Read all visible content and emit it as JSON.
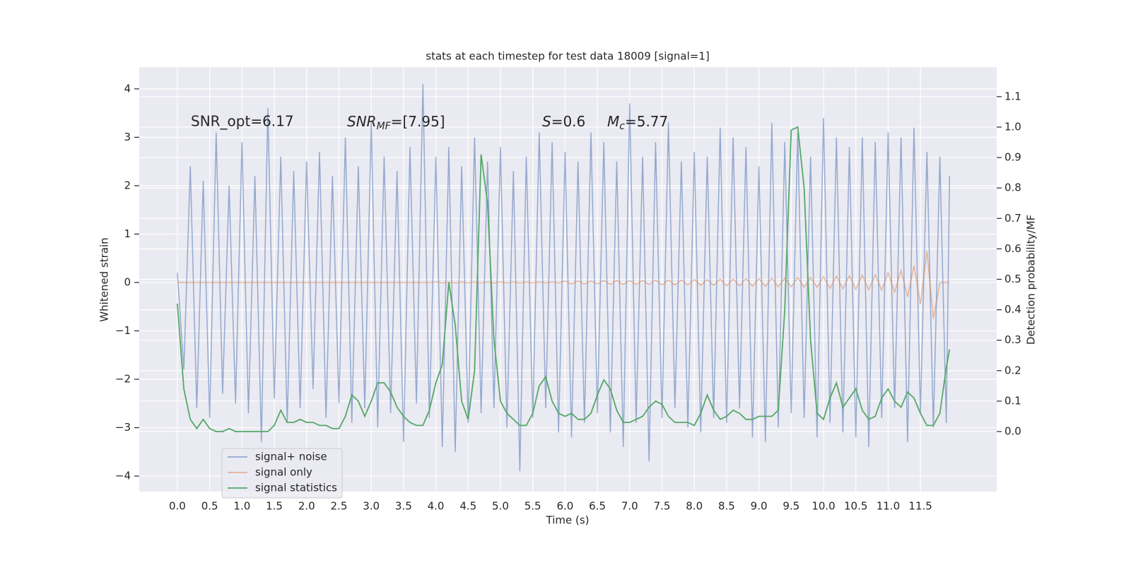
{
  "chart_data": {
    "type": "line",
    "title": "stats at each timestep for test data 18009 [signal=1]",
    "xlabel": "Time (s)",
    "ylabel": "Whitened strain",
    "y2label": "Detection probability/MF",
    "xlim": [
      -0.59,
      12.68
    ],
    "ylim": [
      -4.32,
      4.45
    ],
    "y2lim": [
      -0.197,
      1.197
    ],
    "xticks": [
      {
        "value": 0,
        "label": "0.0"
      },
      0.5,
      {
        "value": 1,
        "label": "1.0"
      },
      1.5,
      {
        "value": 2,
        "label": "2.0"
      },
      2.5,
      {
        "value": 3,
        "label": "3.0"
      },
      3.5,
      {
        "value": 4,
        "label": "4.0"
      },
      4.5,
      {
        "value": 5,
        "label": "5.0"
      },
      5.5,
      {
        "value": 6,
        "label": "6.0"
      },
      6.5,
      {
        "value": 7,
        "label": "7.0"
      },
      7.5,
      {
        "value": 8,
        "label": "8.0"
      },
      8.5,
      {
        "value": 9,
        "label": "9.0"
      },
      9.5,
      {
        "value": 10,
        "label": "10.0"
      },
      10.5,
      {
        "value": 11,
        "label": "11.0"
      },
      11.5
    ],
    "yticks": [
      {
        "value": -4,
        "label": "−4"
      },
      {
        "value": -3,
        "label": "−3"
      },
      {
        "value": -2,
        "label": "−2"
      },
      {
        "value": -1,
        "label": "−1"
      },
      0,
      1,
      2,
      3,
      4
    ],
    "y2ticks": [
      {
        "value": 0,
        "label": "0.0"
      },
      0.1,
      0.2,
      0.3,
      0.4,
      0.5,
      0.6,
      0.7,
      0.8,
      0.9,
      {
        "value": 1,
        "label": "1.0"
      },
      1.1
    ],
    "grid": true,
    "legend": "lower left",
    "annotations": [
      "SNR_opt=6.17",
      {
        "base": "SNR",
        "sub": "MF",
        "after": "=[7.95]"
      },
      {
        "base": "S",
        "after": "=0.6"
      },
      {
        "base": "M",
        "sub": "c",
        "after": "=5.77"
      }
    ],
    "x": [
      0,
      0.1,
      0.2,
      0.3,
      0.4,
      0.5,
      0.6,
      0.7,
      0.8,
      0.9,
      1,
      1.1,
      1.2,
      1.3,
      1.4,
      1.5,
      1.6,
      1.7,
      1.8,
      1.9,
      2,
      2.1,
      2.2,
      2.3,
      2.4,
      2.5,
      2.6,
      2.7,
      2.8,
      2.9,
      3,
      3.1,
      3.2,
      3.3,
      3.4,
      3.5,
      3.6,
      3.7,
      3.8,
      3.9,
      4,
      4.1,
      4.2,
      4.3,
      4.4,
      4.5,
      4.6,
      4.7,
      4.8,
      4.9,
      5,
      5.1,
      5.2,
      5.3,
      5.4,
      5.5,
      5.6,
      5.7,
      5.8,
      5.9,
      6,
      6.1,
      6.2,
      6.3,
      6.4,
      6.5,
      6.6,
      6.7,
      6.8,
      6.9,
      7,
      7.1,
      7.2,
      7.3,
      7.4,
      7.5,
      7.6,
      7.7,
      7.8,
      7.9,
      8,
      8.1,
      8.2,
      8.3,
      8.4,
      8.5,
      8.6,
      8.7,
      8.8,
      8.9,
      9,
      9.1,
      9.2,
      9.3,
      9.4,
      9.5,
      9.6,
      9.7,
      9.8,
      9.9,
      10,
      10.1,
      10.2,
      10.3,
      10.4,
      10.5,
      10.6,
      10.7,
      10.8,
      10.9,
      11,
      11.1,
      11.2,
      11.3,
      11.4,
      11.5,
      11.6,
      11.7,
      11.8,
      11.9,
      11.95
    ],
    "series": [
      {
        "name": "signal+ noise",
        "color": "#4c72b0",
        "values": [
          0.2,
          -1.8,
          2.4,
          -2.6,
          2.1,
          -2.8,
          3.1,
          -2.3,
          2.0,
          -2.5,
          2.9,
          -2.7,
          2.2,
          -3.3,
          3.6,
          -2.4,
          2.6,
          -2.9,
          2.3,
          -2.6,
          2.5,
          -2.2,
          2.7,
          -2.8,
          2.2,
          -2.5,
          3.0,
          -2.9,
          2.4,
          -2.6,
          3.3,
          -3.0,
          2.6,
          -2.7,
          2.3,
          -3.3,
          2.8,
          -2.5,
          4.1,
          -2.8,
          2.6,
          -3.4,
          2.8,
          -3.5,
          2.4,
          -2.9,
          3.0,
          -2.7,
          2.5,
          -2.6,
          2.8,
          -3.0,
          2.3,
          -3.9,
          2.6,
          -2.8,
          3.1,
          -2.6,
          2.9,
          -3.1,
          2.7,
          -3.2,
          2.5,
          -2.9,
          3.1,
          -2.7,
          2.9,
          -3.1,
          2.5,
          -3.4,
          3.7,
          -2.9,
          2.6,
          -3.7,
          2.9,
          -2.8,
          3.3,
          -2.6,
          2.5,
          -3.0,
          2.7,
          -3.1,
          2.6,
          -2.8,
          3.2,
          -2.9,
          3.0,
          -2.6,
          2.8,
          -3.2,
          2.4,
          -3.3,
          3.3,
          -3.0,
          2.9,
          -2.7,
          3.1,
          -2.8,
          2.6,
          -3.2,
          3.4,
          -2.9,
          3.0,
          -3.1,
          2.8,
          -3.2,
          3.0,
          -3.4,
          2.9,
          -2.8,
          3.1,
          -2.6,
          3.0,
          -3.3,
          3.2,
          -2.7,
          2.7,
          -3.0,
          2.6,
          -2.9,
          2.2
        ]
      },
      {
        "name": "signal only",
        "color": "#dd8452",
        "values": [
          0,
          0,
          0,
          0,
          0,
          0,
          0,
          0,
          0,
          0,
          0,
          0,
          0,
          0,
          0,
          0,
          0,
          0,
          0,
          0,
          0,
          0,
          0,
          0,
          0,
          0,
          0,
          0,
          0,
          0,
          0,
          0,
          0,
          0,
          0,
          0,
          0,
          0,
          0,
          0,
          0.01,
          -0.01,
          0.01,
          -0.01,
          0.01,
          -0.01,
          0.01,
          -0.01,
          0.01,
          -0.01,
          0.01,
          -0.01,
          0.01,
          -0.01,
          0.01,
          -0.01,
          0.01,
          -0.01,
          0.01,
          -0.01,
          0.03,
          -0.03,
          0.03,
          -0.03,
          0.03,
          -0.03,
          0.04,
          -0.04,
          0.04,
          -0.04,
          0.04,
          -0.04,
          0.04,
          -0.04,
          0.05,
          -0.05,
          0.05,
          -0.05,
          0.05,
          -0.05,
          0.06,
          -0.06,
          0.06,
          -0.06,
          0.07,
          -0.07,
          0.07,
          -0.07,
          0.08,
          -0.08,
          0.08,
          -0.08,
          0.09,
          -0.09,
          0.09,
          -0.09,
          0.1,
          -0.1,
          0.1,
          -0.1,
          0.12,
          -0.12,
          0.13,
          -0.13,
          0.14,
          -0.14,
          0.15,
          -0.15,
          0.16,
          -0.16,
          0.2,
          -0.2,
          0.25,
          -0.3,
          0.35,
          -0.45,
          0.65,
          -0.75,
          0,
          0,
          0
        ]
      },
      {
        "name": "signal statistics",
        "color": "#55a868",
        "axis": "y2",
        "values": [
          0.42,
          0.14,
          0.04,
          0.01,
          0.04,
          0.01,
          0,
          0,
          0.01,
          0,
          0,
          0,
          0,
          0,
          0,
          0.02,
          0.07,
          0.03,
          0.03,
          0.04,
          0.03,
          0.03,
          0.02,
          0.02,
          0.01,
          0.01,
          0.05,
          0.12,
          0.1,
          0.05,
          0.1,
          0.16,
          0.16,
          0.13,
          0.08,
          0.05,
          0.03,
          0.02,
          0.02,
          0.07,
          0.16,
          0.22,
          0.49,
          0.35,
          0.1,
          0.04,
          0.2,
          0.91,
          0.75,
          0.3,
          0.1,
          0.06,
          0.04,
          0.02,
          0.02,
          0.06,
          0.15,
          0.18,
          0.1,
          0.06,
          0.05,
          0.06,
          0.04,
          0.04,
          0.06,
          0.12,
          0.17,
          0.14,
          0.07,
          0.03,
          0.03,
          0.04,
          0.05,
          0.08,
          0.1,
          0.09,
          0.05,
          0.03,
          0.03,
          0.03,
          0.02,
          0.06,
          0.12,
          0.07,
          0.04,
          0.05,
          0.07,
          0.06,
          0.04,
          0.04,
          0.05,
          0.05,
          0.05,
          0.07,
          0.4,
          0.99,
          1.0,
          0.8,
          0.3,
          0.06,
          0.04,
          0.11,
          0.16,
          0.08,
          0.11,
          0.14,
          0.07,
          0.04,
          0.05,
          0.11,
          0.14,
          0.1,
          0.08,
          0.13,
          0.11,
          0.06,
          0.02,
          0.02,
          0.06,
          0.21,
          0.27
        ]
      }
    ]
  }
}
